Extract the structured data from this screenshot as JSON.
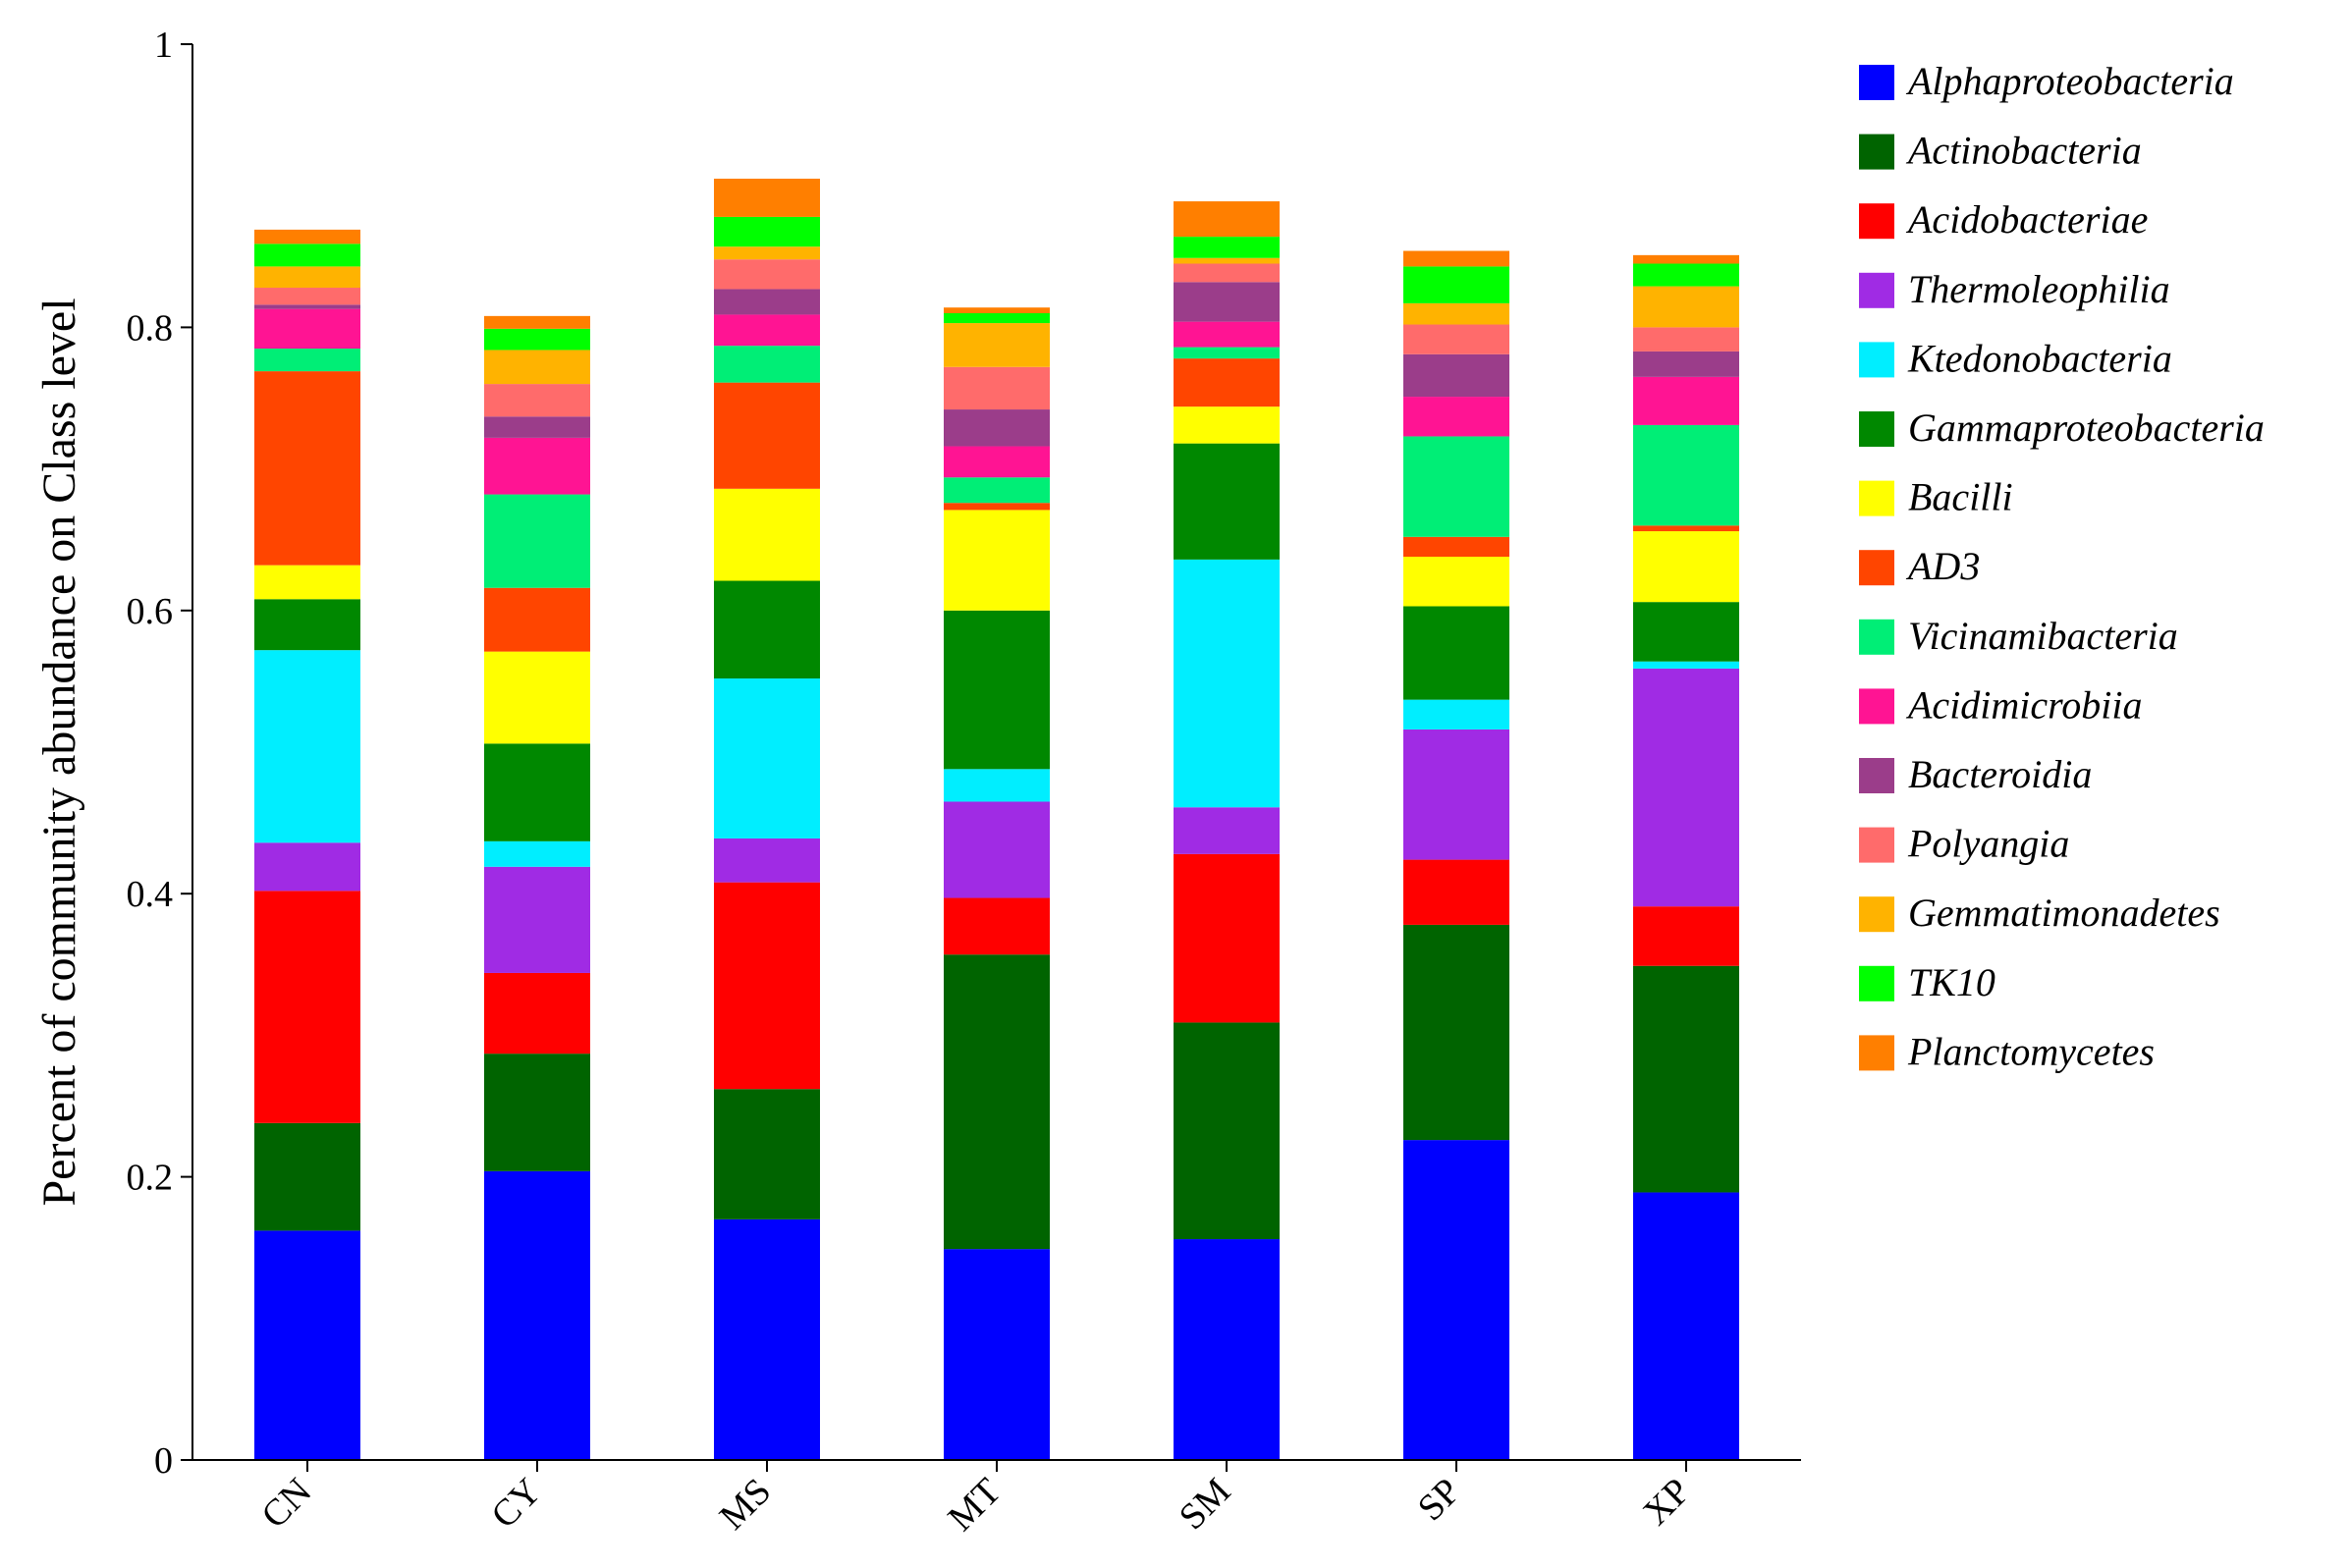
{
  "chart_data": {
    "type": "bar",
    "stacked": true,
    "ylabel": "Percent of community abundance on Class level",
    "xlabel": "",
    "ylim": [
      0,
      1
    ],
    "yticks": [
      0,
      0.2,
      0.4,
      0.6,
      0.8,
      1
    ],
    "ytick_labels": [
      "0",
      "0.2",
      "0.4",
      "0.6",
      "0.8",
      "1"
    ],
    "grid": false,
    "legend_position": "right",
    "categories": [
      "CN",
      "CY",
      "MS",
      "MT",
      "SM",
      "SP",
      "XP"
    ],
    "series": [
      {
        "name": "Alphaproteobacteria",
        "color": "#0000ff",
        "values": [
          0.162,
          0.204,
          0.17,
          0.149,
          0.156,
          0.226,
          0.189
        ]
      },
      {
        "name": "Actinobacteria",
        "color": "#006400",
        "values": [
          0.076,
          0.083,
          0.092,
          0.208,
          0.153,
          0.152,
          0.16
        ]
      },
      {
        "name": "Acidobacteriae",
        "color": "#ff0000",
        "values": [
          0.164,
          0.057,
          0.146,
          0.04,
          0.119,
          0.046,
          0.042
        ]
      },
      {
        "name": "Thermoleophilia",
        "color": "#a02be4",
        "values": [
          0.034,
          0.075,
          0.031,
          0.068,
          0.033,
          0.092,
          0.168
        ]
      },
      {
        "name": "Ktedonobacteria",
        "color": "#00eeff",
        "values": [
          0.136,
          0.018,
          0.113,
          0.023,
          0.175,
          0.021,
          0.005
        ]
      },
      {
        "name": "Gammaproteobacteria",
        "color": "#008800",
        "values": [
          0.036,
          0.069,
          0.069,
          0.112,
          0.082,
          0.066,
          0.042
        ]
      },
      {
        "name": "Bacilli",
        "color": "#ffff00",
        "values": [
          0.024,
          0.065,
          0.065,
          0.071,
          0.026,
          0.035,
          0.05
        ]
      },
      {
        "name": "AD3",
        "color": "#ff4500",
        "values": [
          0.137,
          0.045,
          0.075,
          0.005,
          0.034,
          0.014,
          0.004
        ]
      },
      {
        "name": "Vicinamibacteria",
        "color": "#00ee76",
        "values": [
          0.016,
          0.066,
          0.026,
          0.018,
          0.008,
          0.071,
          0.071
        ]
      },
      {
        "name": "Acidimicrobiia",
        "color": "#ff1493",
        "values": [
          0.028,
          0.04,
          0.022,
          0.022,
          0.018,
          0.028,
          0.034
        ]
      },
      {
        "name": "Bacteroidia",
        "color": "#9b3d8a",
        "values": [
          0.003,
          0.015,
          0.018,
          0.026,
          0.028,
          0.03,
          0.018
        ]
      },
      {
        "name": "Polyangia",
        "color": "#ff6b6b",
        "values": [
          0.012,
          0.023,
          0.021,
          0.03,
          0.013,
          0.021,
          0.017
        ]
      },
      {
        "name": "Gemmatimonadetes",
        "color": "#ffb300",
        "values": [
          0.015,
          0.024,
          0.009,
          0.031,
          0.004,
          0.015,
          0.029
        ]
      },
      {
        "name": "TK10",
        "color": "#00ff00",
        "values": [
          0.016,
          0.015,
          0.021,
          0.007,
          0.015,
          0.026,
          0.016
        ]
      },
      {
        "name": "Planctomycetes",
        "color": "#ff7f00",
        "values": [
          0.01,
          0.009,
          0.027,
          0.004,
          0.025,
          0.011,
          0.006
        ]
      }
    ]
  }
}
